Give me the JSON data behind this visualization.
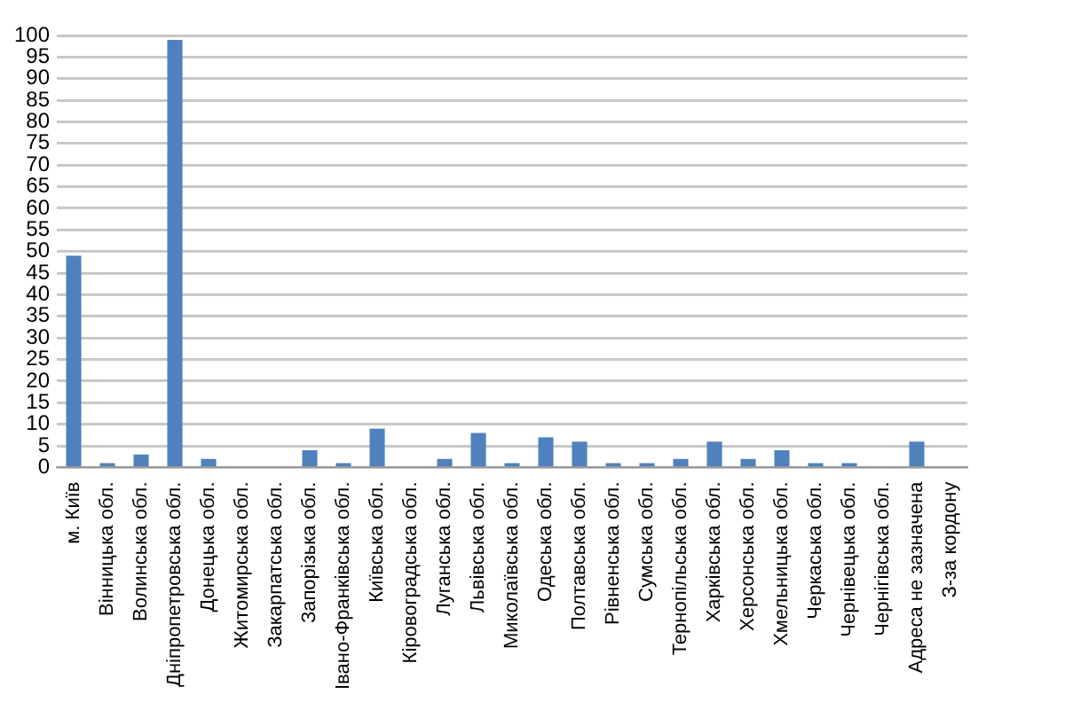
{
  "chart_data": {
    "type": "bar",
    "categories": [
      "м. Київ",
      "Вінницька обл.",
      "Волинська обл.",
      "Дніпропетровська обл.",
      "Донецька обл.",
      "Житомирська обл.",
      "Закарпатська обл.",
      "Запорізька обл.",
      "Івано-Франківська обл.",
      "Київська обл.",
      "Кіровоградська обл.",
      "Луганська обл.",
      "Львівська обл.",
      "Миколаївська обл.",
      "Одеська обл.",
      "Полтавська обл.",
      "Рівненська обл.",
      "Сумська обл.",
      "Тернопільська обл.",
      "Харківська обл.",
      "Херсонська обл.",
      "Хмельницька обл.",
      "Черкаська обл.",
      "Чернівецька обл.",
      "Чернігівська обл.",
      "Адреса не зазначена",
      "З-за кордону"
    ],
    "values": [
      49,
      1,
      3,
      99,
      2,
      0,
      0,
      4,
      1,
      9,
      0,
      2,
      8,
      1,
      7,
      6,
      1,
      1,
      2,
      6,
      2,
      4,
      1,
      1,
      0,
      6,
      0
    ],
    "color": "#4f81bd",
    "ylim": [
      0,
      100
    ],
    "yticks": [
      0,
      5,
      10,
      15,
      20,
      25,
      30,
      35,
      40,
      45,
      50,
      55,
      60,
      65,
      70,
      75,
      80,
      85,
      90,
      95,
      100
    ],
    "grid": "y"
  }
}
